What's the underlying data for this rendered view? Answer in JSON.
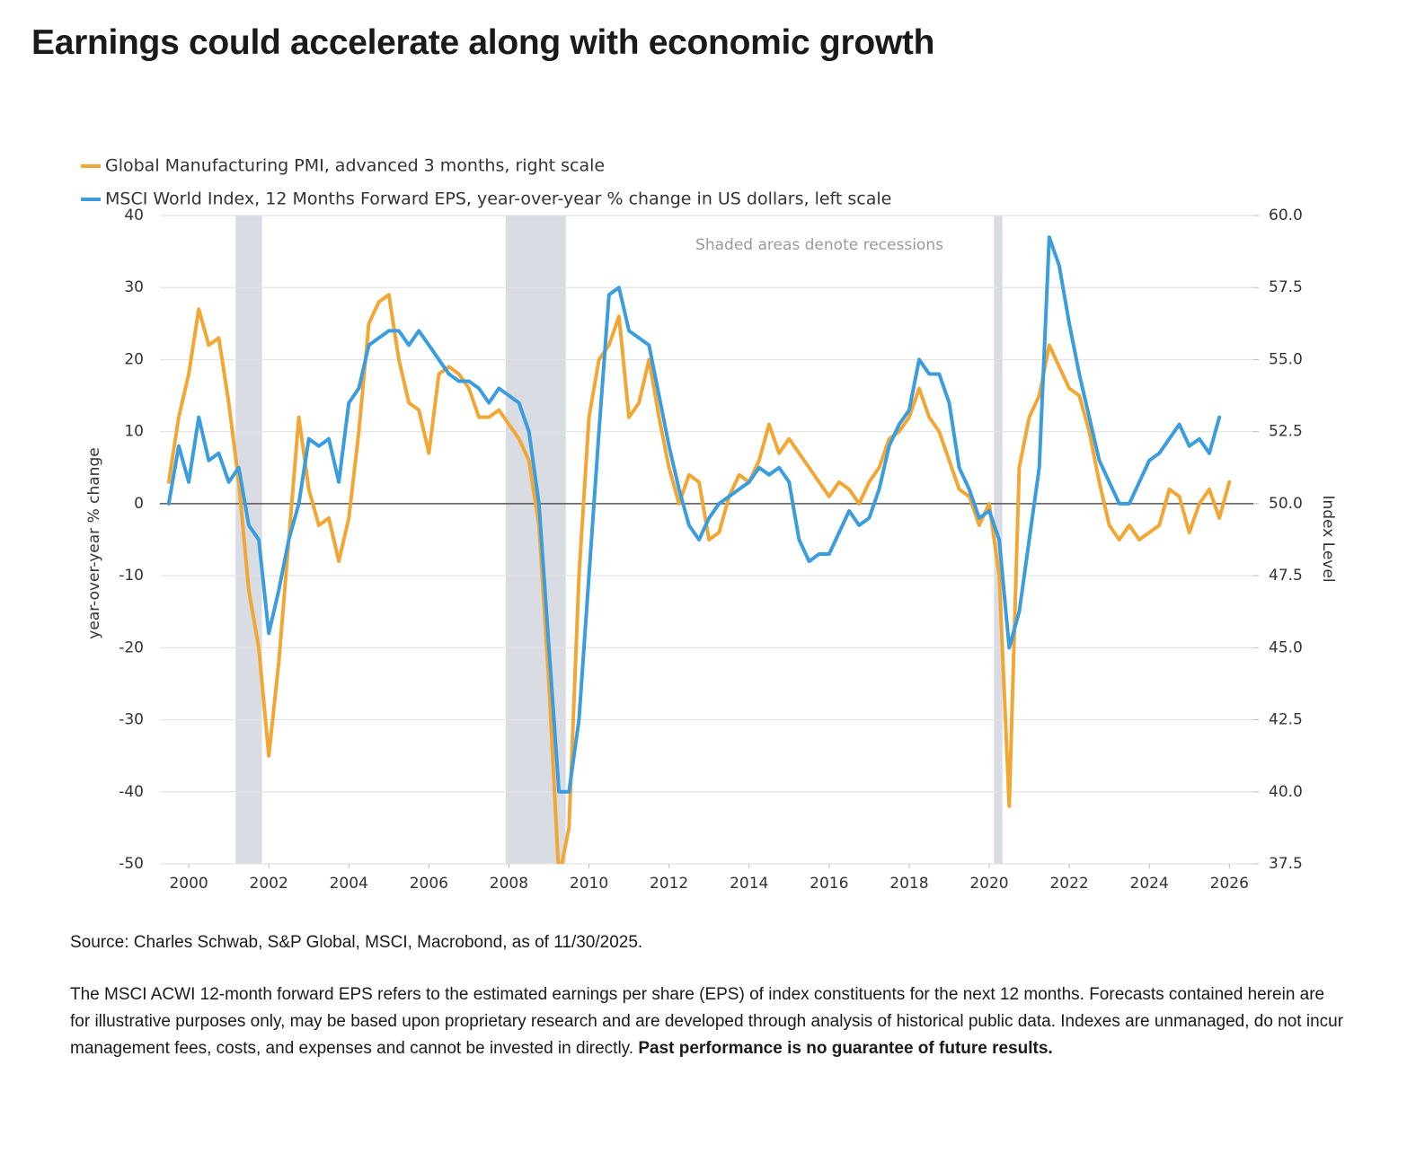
{
  "chart_data": {
    "type": "line",
    "title": "Earnings could accelerate along with economic growth",
    "annotation": "Shaded areas denote recessions",
    "ylabel": "year-over-year % change",
    "y2label": "Index Level",
    "source": "Source: Charles Schwab, S&P Global, MSCI, Macrobond, as of 11/30/2025.",
    "disclaimer": "The MSCI ACWI 12-month forward EPS refers to the estimated earnings per share (EPS) of index constituents for the next 12 months. Forecasts contained herein are for illustrative purposes only, may be based upon proprietary research and are developed through analysis of historical public data. Indexes are unmanaged, do not incur management fees, costs, and expenses and cannot be invested in directly.",
    "disclaimer_bold": "Past performance is no guarantee of future results.",
    "grid": true,
    "legend": "top-left",
    "recession_color": "#d9dce3",
    "recessions": [
      [
        2001.17,
        2001.83
      ],
      [
        2007.92,
        2009.42
      ],
      [
        2020.12,
        2020.33
      ]
    ],
    "xlim": [
      1999.28,
      2026.6
    ],
    "xticks": [
      2000,
      2002,
      2004,
      2006,
      2008,
      2010,
      2012,
      2014,
      2016,
      2018,
      2020,
      2022,
      2024,
      2026
    ],
    "ylim": [
      -50,
      40
    ],
    "yticks": [
      -50,
      -40,
      -30,
      -20,
      -10,
      0,
      10,
      20,
      30,
      40
    ],
    "y2lim": [
      37.5,
      60
    ],
    "y2ticks": [
      37.5,
      {
        "value": 40,
        "label": "40.0"
      },
      42.5,
      {
        "value": 45,
        "label": "45.0"
      },
      47.5,
      {
        "value": 50,
        "label": "50.0"
      },
      52.5,
      {
        "value": 55,
        "label": "55.0"
      },
      57.5,
      {
        "value": 60,
        "label": "60.0"
      }
    ],
    "x": [
      1999.5,
      1999.75,
      2000,
      2000.25,
      2000.5,
      2000.75,
      2001,
      2001.25,
      2001.5,
      2001.75,
      2002,
      2002.25,
      2002.5,
      2002.75,
      2003,
      2003.25,
      2003.5,
      2003.75,
      2004,
      2004.25,
      2004.5,
      2004.75,
      2005,
      2005.25,
      2005.5,
      2005.75,
      2006,
      2006.25,
      2006.5,
      2006.75,
      2007,
      2007.25,
      2007.5,
      2007.75,
      2008,
      2008.25,
      2008.5,
      2008.75,
      2009,
      2009.25,
      2009.5,
      2009.75,
      2010,
      2010.25,
      2010.5,
      2010.75,
      2011,
      2011.25,
      2011.5,
      2011.75,
      2012,
      2012.25,
      2012.5,
      2012.75,
      2013,
      2013.25,
      2013.5,
      2013.75,
      2014,
      2014.25,
      2014.5,
      2014.75,
      2015,
      2015.25,
      2015.5,
      2015.75,
      2016,
      2016.25,
      2016.5,
      2016.75,
      2017,
      2017.25,
      2017.5,
      2017.75,
      2018,
      2018.25,
      2018.5,
      2018.75,
      2019,
      2019.25,
      2019.5,
      2019.75,
      2020,
      2020.25,
      2020.5,
      2020.75,
      2021,
      2021.25,
      2021.5,
      2021.75,
      2022,
      2022.25,
      2022.5,
      2022.75,
      2023,
      2023.25,
      2023.5,
      2023.75,
      2024,
      2024.25,
      2024.5,
      2024.75,
      2025,
      2025.25,
      2025.5,
      2025.75,
      2026
    ],
    "series": [
      {
        "name": "Global Manufacturing PMI, advanced 3 months, right scale",
        "color": "#f2a735",
        "axis": "y2",
        "values": [
          50.75,
          53,
          54.5,
          56.75,
          55.5,
          55.75,
          53.5,
          50.75,
          47,
          45,
          41.25,
          44.5,
          48.75,
          53,
          50.5,
          49.25,
          49.5,
          48,
          49.5,
          52.5,
          56.25,
          57,
          57.25,
          55,
          53.5,
          53.25,
          51.75,
          54.5,
          54.75,
          54.5,
          54,
          53,
          53,
          53.25,
          52.75,
          52.25,
          51.5,
          49.25,
          43.75,
          37,
          38.75,
          47.5,
          53,
          55,
          55.5,
          56.5,
          53,
          53.5,
          55,
          53,
          51.25,
          50,
          51,
          50.75,
          48.75,
          49,
          50.25,
          51,
          50.75,
          51.5,
          52.75,
          51.75,
          52.25,
          51.75,
          51.25,
          50.75,
          50.25,
          50.75,
          50.5,
          50,
          50.75,
          51.25,
          52.25,
          52.5,
          53,
          54,
          53,
          52.5,
          51.5,
          50.5,
          50.25,
          49.25,
          50,
          47.5,
          39.5,
          51.25,
          53,
          53.75,
          55.5,
          54.75,
          54,
          53.75,
          52.5,
          50.75,
          49.25,
          48.75,
          49.25,
          48.75,
          49,
          49.25,
          50.5,
          50.25,
          49,
          50,
          50.5,
          49.5,
          50.75
        ]
      },
      {
        "name": "MSCI World Index, 12 Months Forward EPS, year-over-year % change in US dollars, left scale",
        "color": "#3b9ddd",
        "values": [
          0,
          8,
          3,
          12,
          6,
          7,
          3,
          5,
          -3,
          -5,
          -18,
          -12,
          -5,
          0,
          9,
          8,
          9,
          3,
          14,
          16,
          22,
          23,
          24,
          24,
          22,
          24,
          22,
          20,
          18,
          17,
          17,
          16,
          14,
          16,
          15,
          14,
          10,
          0,
          -20,
          -40,
          -40,
          -30,
          -10,
          10,
          29,
          30,
          24,
          23,
          22,
          15,
          8,
          2,
          -3,
          -5,
          -2,
          0,
          1,
          2,
          3,
          5,
          4,
          5,
          3,
          -5,
          -8,
          -7,
          -7,
          -4,
          -1,
          -3,
          -2,
          2,
          8,
          11,
          13,
          20,
          18,
          18,
          14,
          5,
          2,
          -2,
          -1,
          -5,
          -20,
          -15,
          -5,
          5,
          37,
          33,
          25,
          18,
          12,
          6,
          3,
          0,
          0,
          3,
          6,
          7,
          9,
          11,
          8,
          9,
          7,
          12,
          null
        ]
      }
    ]
  }
}
